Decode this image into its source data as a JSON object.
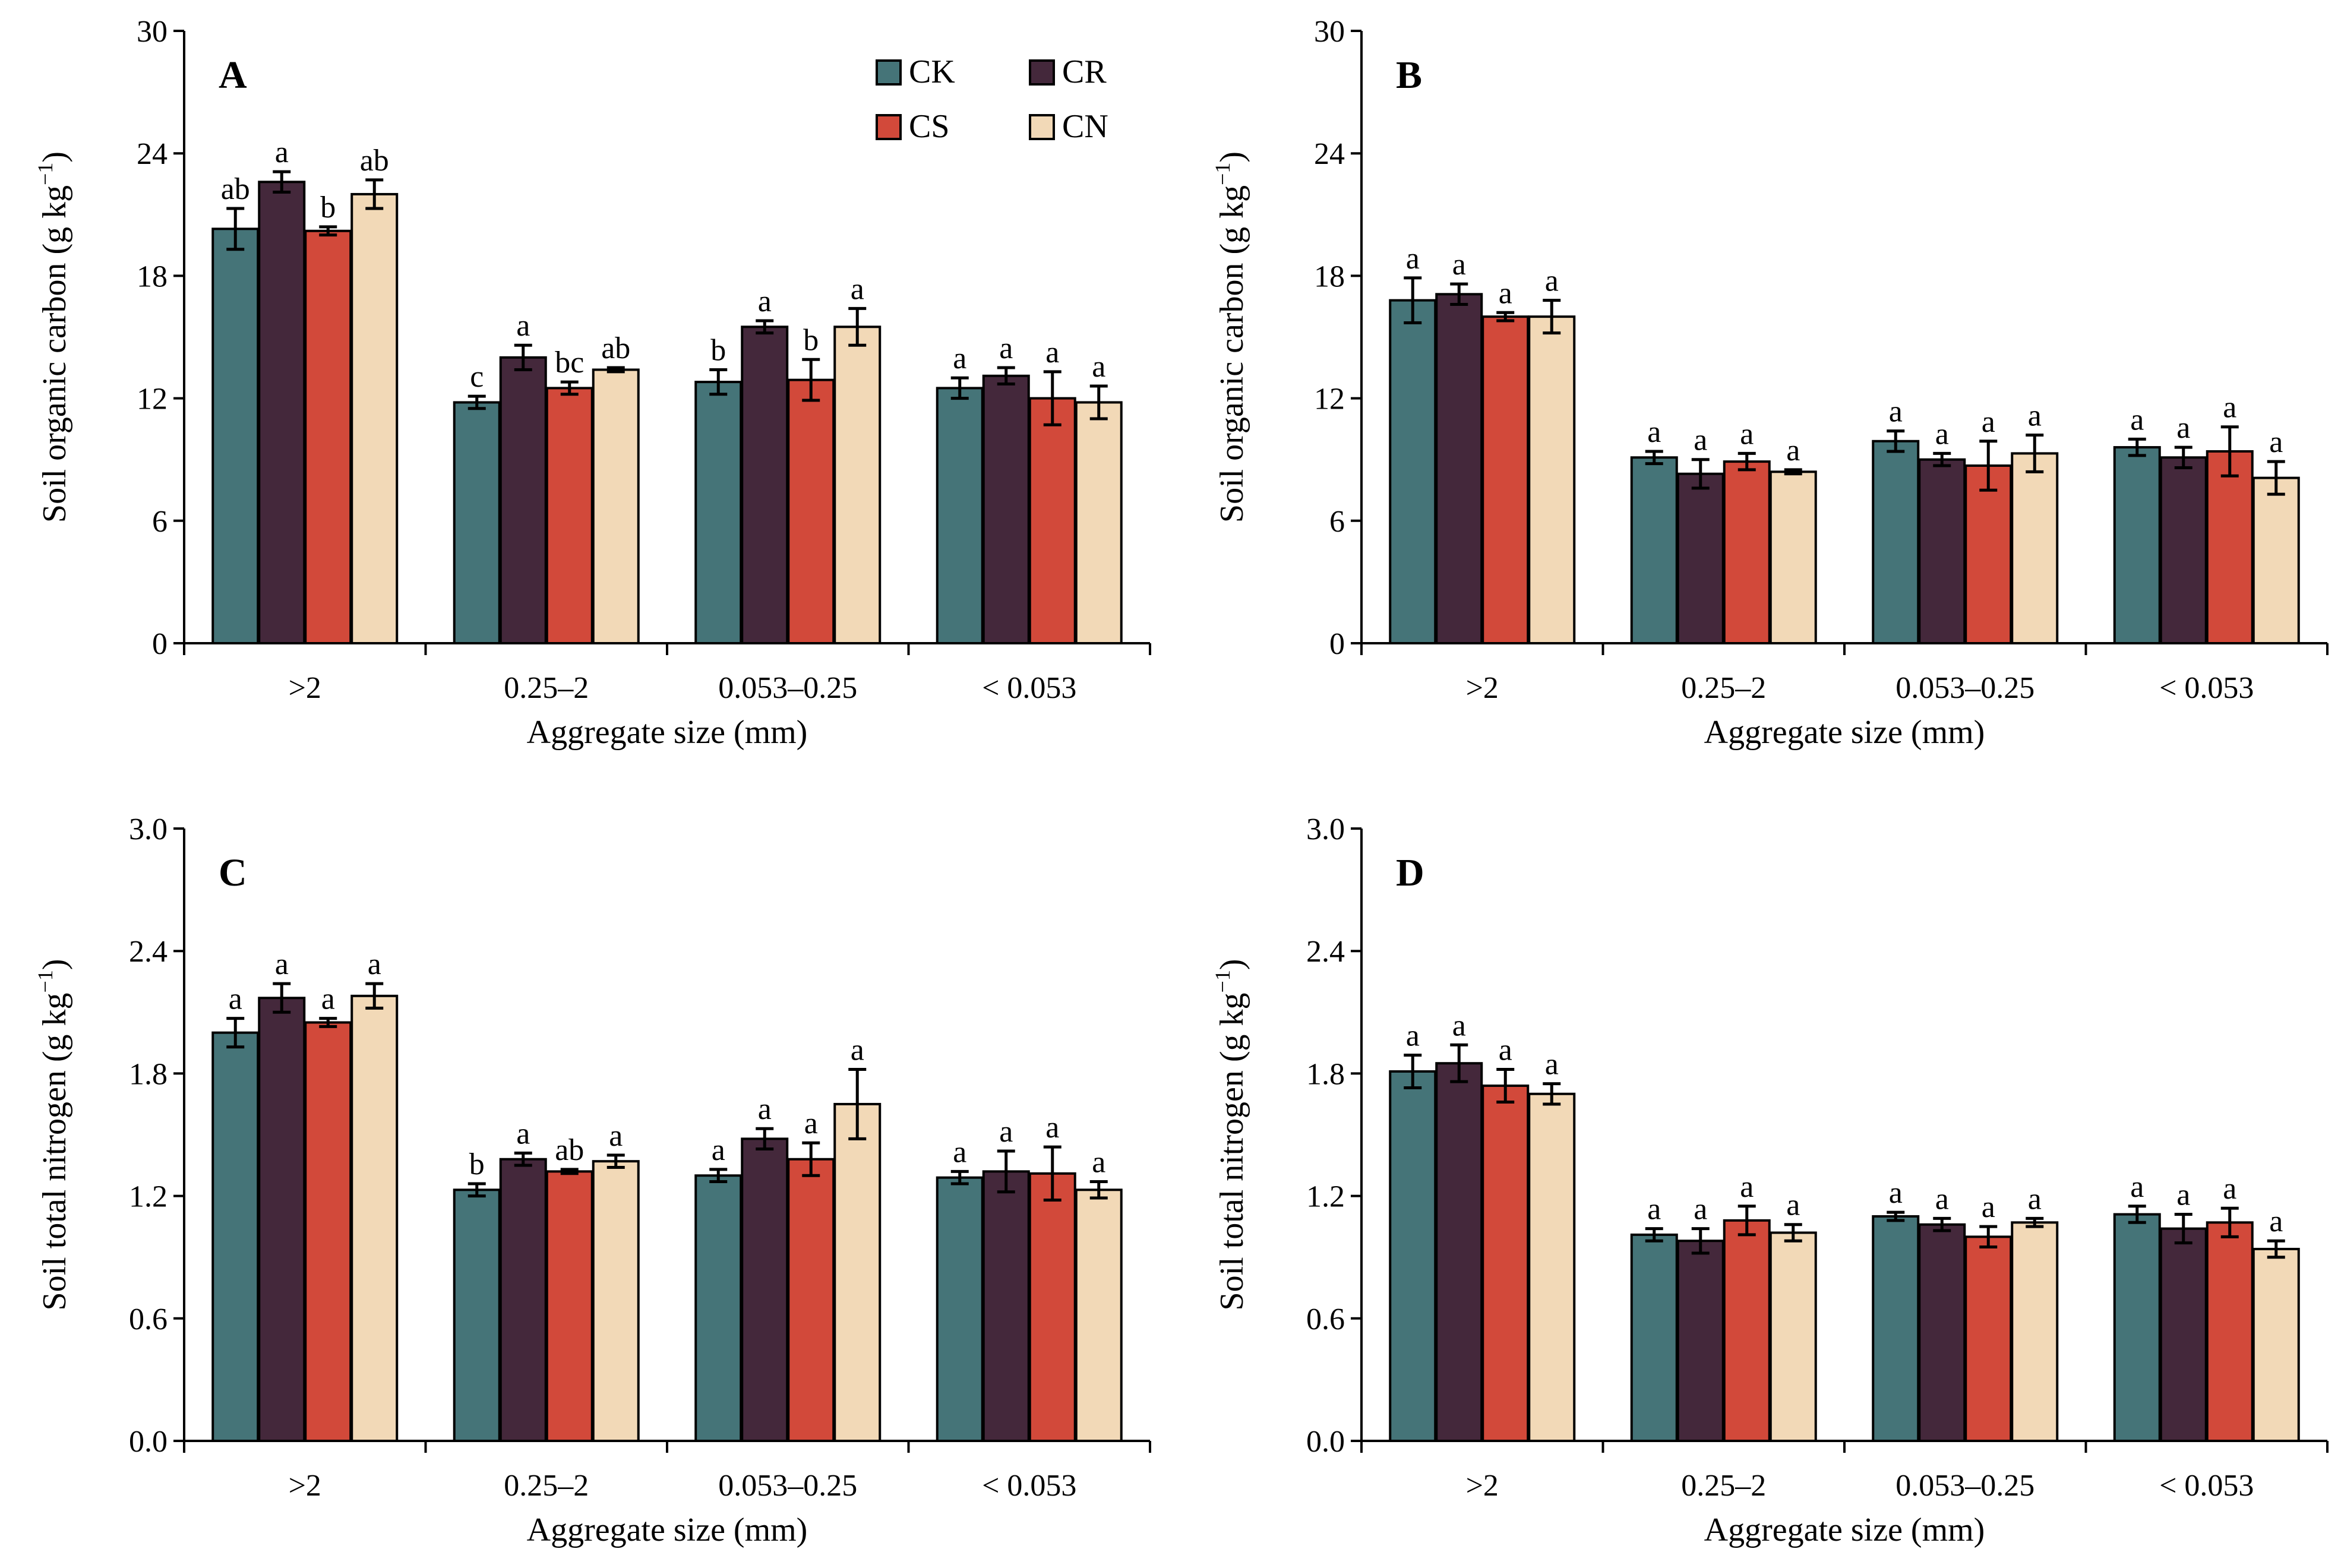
{
  "legend": [
    {
      "key": "CK",
      "color": "#457478"
    },
    {
      "key": "CR",
      "color": "#44283b"
    },
    {
      "key": "CS",
      "color": "#d2493a"
    },
    {
      "key": "CN",
      "color": "#f2d9b7"
    }
  ],
  "chart_data": [
    {
      "type": "bar",
      "panel": "A",
      "categories": [
        ">2",
        "0.25–2",
        "0.053–0.25",
        "< 0.053"
      ],
      "xlabel": "Aggregate  size (mm)",
      "ylabel": "Soil organic carbon (g kg",
      "ylabel_sup": "−1",
      "ylabel_end": ")",
      "ylim": [
        0,
        30
      ],
      "yticks": [
        "0",
        "6",
        "12",
        "18",
        "24",
        "30"
      ],
      "legend_shown": true,
      "series": [
        {
          "name": "CK",
          "values": [
            20.3,
            11.8,
            12.8,
            12.5
          ],
          "errors": [
            1.0,
            0.3,
            0.6,
            0.5
          ],
          "labels": [
            "ab",
            "c",
            "b",
            "a"
          ]
        },
        {
          "name": "CR",
          "values": [
            22.6,
            14.0,
            15.5,
            13.1
          ],
          "errors": [
            0.5,
            0.6,
            0.3,
            0.4
          ],
          "labels": [
            "a",
            "a",
            "a",
            "a"
          ]
        },
        {
          "name": "CS",
          "values": [
            20.2,
            12.5,
            12.9,
            12.0
          ],
          "errors": [
            0.2,
            0.3,
            1.0,
            1.3
          ],
          "labels": [
            "b",
            "bc",
            "b",
            "a"
          ]
        },
        {
          "name": "CN",
          "values": [
            22.0,
            13.4,
            15.5,
            11.8
          ],
          "errors": [
            0.7,
            0.1,
            0.9,
            0.8
          ],
          "labels": [
            "ab",
            "ab",
            "a",
            "a"
          ]
        }
      ]
    },
    {
      "type": "bar",
      "panel": "B",
      "categories": [
        ">2",
        "0.25–2",
        "0.053–0.25",
        "< 0.053"
      ],
      "xlabel": "Aggregate  size (mm)",
      "ylabel": "Soil organic carbon (g kg",
      "ylabel_sup": "−1",
      "ylabel_end": ")",
      "ylim": [
        0,
        30
      ],
      "yticks": [
        "0",
        "6",
        "12",
        "18",
        "24",
        "30"
      ],
      "legend_shown": false,
      "series": [
        {
          "name": "CK",
          "values": [
            16.8,
            9.1,
            9.9,
            9.6
          ],
          "errors": [
            1.1,
            0.3,
            0.5,
            0.4
          ],
          "labels": [
            "a",
            "a",
            "a",
            "a"
          ]
        },
        {
          "name": "CR",
          "values": [
            17.1,
            8.3,
            9.0,
            9.1
          ],
          "errors": [
            0.5,
            0.7,
            0.3,
            0.5
          ],
          "labels": [
            "a",
            "a",
            "a",
            "a"
          ]
        },
        {
          "name": "CS",
          "values": [
            16.0,
            8.9,
            8.7,
            9.4
          ],
          "errors": [
            0.2,
            0.4,
            1.2,
            1.2
          ],
          "labels": [
            "a",
            "a",
            "a",
            "a"
          ]
        },
        {
          "name": "CN",
          "values": [
            16.0,
            8.4,
            9.3,
            8.1
          ],
          "errors": [
            0.8,
            0.1,
            0.9,
            0.8
          ],
          "labels": [
            "a",
            "a",
            "a",
            "a"
          ]
        }
      ]
    },
    {
      "type": "bar",
      "panel": "C",
      "categories": [
        ">2",
        "0.25–2",
        "0.053–0.25",
        "< 0.053"
      ],
      "xlabel": "Aggregate  size (mm)",
      "ylabel": "Soil total nitrogen  (g kg",
      "ylabel_sup": "−1",
      "ylabel_end": ")",
      "ylim": [
        0,
        3.0
      ],
      "yticks": [
        "0.0",
        "0.6",
        "1.2",
        "1.8",
        "2.4",
        "3.0"
      ],
      "legend_shown": false,
      "series": [
        {
          "name": "CK",
          "values": [
            2.0,
            1.23,
            1.3,
            1.29
          ],
          "errors": [
            0.07,
            0.03,
            0.03,
            0.03
          ],
          "labels": [
            "a",
            "b",
            "a",
            "a"
          ]
        },
        {
          "name": "CR",
          "values": [
            2.17,
            1.38,
            1.48,
            1.32
          ],
          "errors": [
            0.07,
            0.03,
            0.05,
            0.1
          ],
          "labels": [
            "a",
            "a",
            "a",
            "a"
          ]
        },
        {
          "name": "CS",
          "values": [
            2.05,
            1.32,
            1.38,
            1.31
          ],
          "errors": [
            0.02,
            0.01,
            0.08,
            0.13
          ],
          "labels": [
            "a",
            "ab",
            "a",
            "a"
          ]
        },
        {
          "name": "CN",
          "values": [
            2.18,
            1.37,
            1.65,
            1.23
          ],
          "errors": [
            0.06,
            0.03,
            0.17,
            0.04
          ],
          "labels": [
            "a",
            "a",
            "a",
            "a"
          ]
        }
      ]
    },
    {
      "type": "bar",
      "panel": "D",
      "categories": [
        ">2",
        "0.25–2",
        "0.053–0.25",
        "< 0.053"
      ],
      "xlabel": "Aggregate  size (mm)",
      "ylabel": "Soil total nitrogen  (g kg",
      "ylabel_sup": "−1",
      "ylabel_end": ")",
      "ylim": [
        0,
        3.0
      ],
      "yticks": [
        "0.0",
        "0.6",
        "1.2",
        "1.8",
        "2.4",
        "3.0"
      ],
      "legend_shown": false,
      "series": [
        {
          "name": "CK",
          "values": [
            1.81,
            1.01,
            1.1,
            1.11
          ],
          "errors": [
            0.08,
            0.03,
            0.02,
            0.04
          ],
          "labels": [
            "a",
            "a",
            "a",
            "a"
          ]
        },
        {
          "name": "CR",
          "values": [
            1.85,
            0.98,
            1.06,
            1.04
          ],
          "errors": [
            0.09,
            0.06,
            0.03,
            0.07
          ],
          "labels": [
            "a",
            "a",
            "a",
            "a"
          ]
        },
        {
          "name": "CS",
          "values": [
            1.74,
            1.08,
            1.0,
            1.07
          ],
          "errors": [
            0.08,
            0.07,
            0.05,
            0.07
          ],
          "labels": [
            "a",
            "a",
            "a",
            "a"
          ]
        },
        {
          "name": "CN",
          "values": [
            1.7,
            1.02,
            1.07,
            0.94
          ],
          "errors": [
            0.05,
            0.04,
            0.02,
            0.04
          ],
          "labels": [
            "a",
            "a",
            "a",
            "a"
          ]
        }
      ]
    }
  ]
}
